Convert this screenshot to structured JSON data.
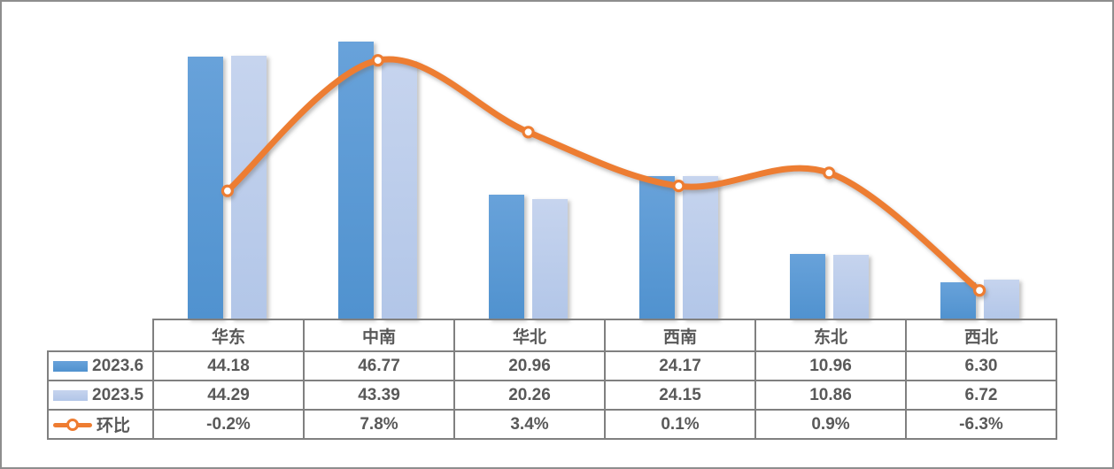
{
  "chart_data": {
    "type": "bar",
    "subtype": "grouped-bars-with-secondary-axis-line",
    "title": "",
    "categories": [
      "华东",
      "中南",
      "华北",
      "西南",
      "东北",
      "西北"
    ],
    "series": [
      {
        "name": "2023.6",
        "type": "bar",
        "axis": "primary",
        "color": "#5b9bd5",
        "values": [
          44.18,
          46.77,
          20.96,
          24.17,
          10.96,
          6.3
        ]
      },
      {
        "name": "2023.5",
        "type": "bar",
        "axis": "primary",
        "color": "#bccde9",
        "values": [
          44.29,
          43.39,
          20.26,
          24.15,
          10.86,
          6.72
        ]
      },
      {
        "name": "环比",
        "type": "line",
        "smooth": true,
        "axis": "secondary",
        "color": "#ed7d31",
        "marker": "circle-white-fill",
        "values": [
          -0.2,
          7.8,
          3.4,
          0.1,
          0.9,
          -6.3
        ],
        "unit": "%"
      }
    ],
    "xlabel": "",
    "ylabel": "",
    "axes_visible": false,
    "gridlines": false,
    "legend_position": "data-table-left-column",
    "data_table_shown": true
  },
  "table": {
    "headers": [
      "华东",
      "中南",
      "华北",
      "西南",
      "东北",
      "西北"
    ],
    "rows": [
      {
        "legend": "2023.6",
        "cells": [
          "44.18",
          "46.77",
          "20.96",
          "24.17",
          "10.96",
          "6.30"
        ]
      },
      {
        "legend": "2023.5",
        "cells": [
          "44.29",
          "43.39",
          "20.26",
          "24.15",
          "10.86",
          "6.72"
        ]
      },
      {
        "legend": "环比",
        "cells": [
          "-0.2%",
          "7.8%",
          "3.4%",
          "0.1%",
          "0.9%",
          "-6.3%"
        ]
      }
    ]
  },
  "colors": {
    "bar_dark_blue": "#5b9bd5",
    "bar_light_blue": "#bccde9",
    "line_orange": "#ed7d31",
    "table_border": "#808080",
    "table_text": "#595959",
    "frame_border": "#8e8e8e",
    "background": "#ffffff"
  }
}
